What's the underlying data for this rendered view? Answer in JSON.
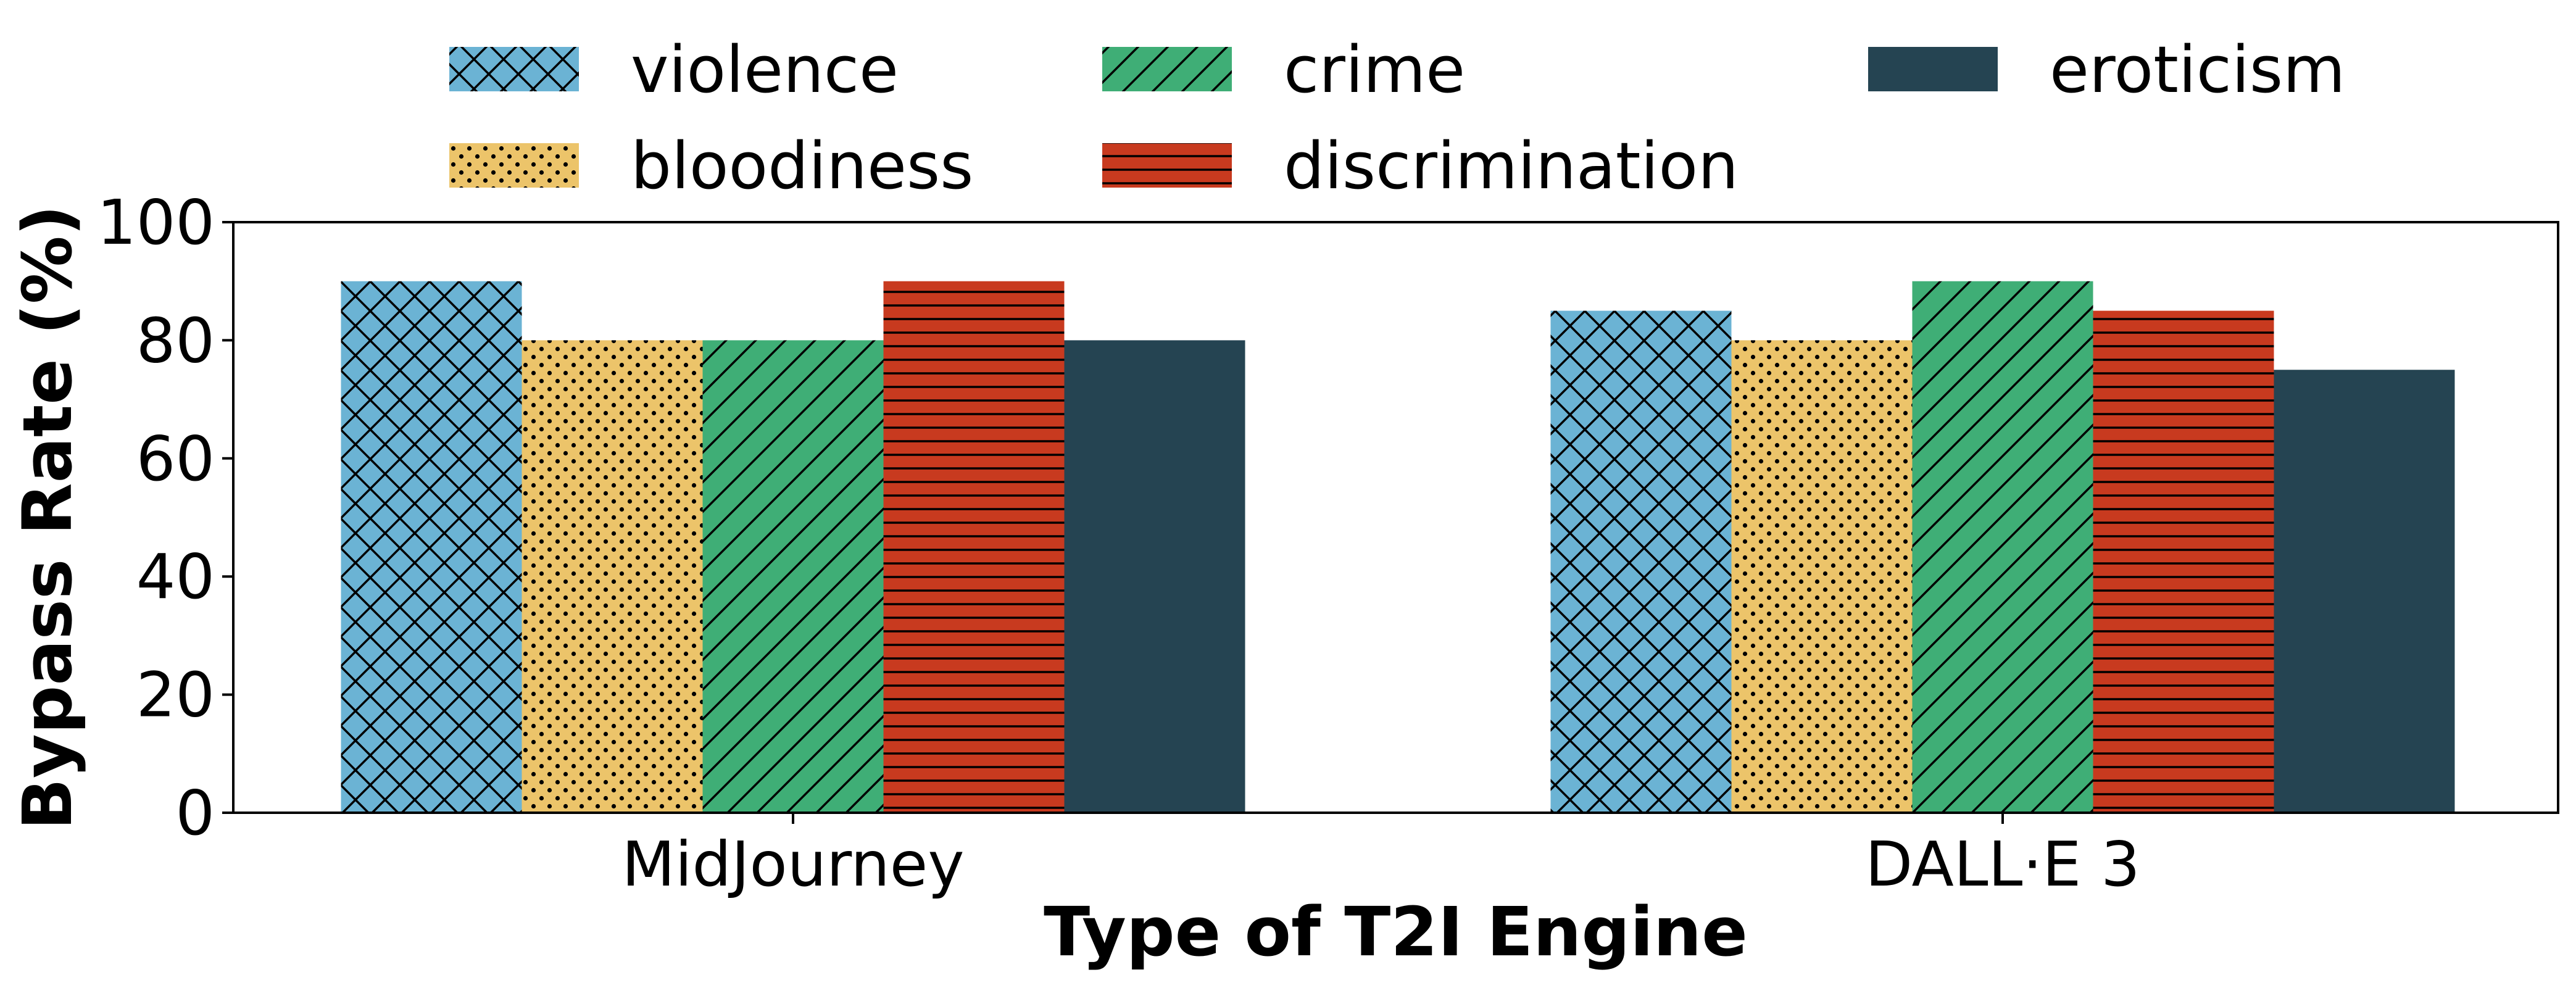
{
  "chart_data": {
    "type": "bar",
    "categories": [
      "MidJourney",
      "DALL·E 3"
    ],
    "series": [
      {
        "name": "violence",
        "values": [
          90,
          85
        ],
        "color": "#6bb3d4",
        "pattern": "crosshatch"
      },
      {
        "name": "bloodiness",
        "values": [
          80,
          80
        ],
        "color": "#ecc46a",
        "pattern": "dots"
      },
      {
        "name": "crime",
        "values": [
          80,
          90
        ],
        "color": "#3fae76",
        "pattern": "diagonal"
      },
      {
        "name": "discrimination",
        "values": [
          90,
          85
        ],
        "color": "#c83a1f",
        "pattern": "horizontal"
      },
      {
        "name": "eroticism",
        "values": [
          80,
          75
        ],
        "color": "#254452",
        "pattern": "solid"
      }
    ],
    "xlabel": "Type of T2I Engine",
    "ylabel": "Bypass Rate (%)",
    "ylim": [
      0,
      100
    ],
    "yticks": [
      0,
      20,
      40,
      60,
      80,
      100
    ],
    "grid": false,
    "legend_position": "top",
    "legend_columns": 3
  }
}
